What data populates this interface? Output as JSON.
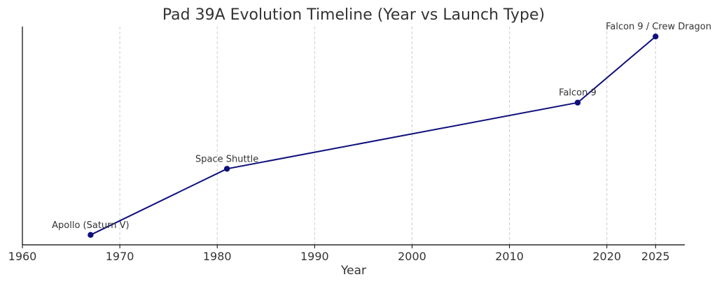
{
  "chart_data": {
    "type": "line",
    "title": "Pad 39A Evolution Timeline (Year vs Launch Type)",
    "xlabel": "Year",
    "ylabel": "",
    "xlim": [
      1960,
      2028
    ],
    "ylim": [
      0.85,
      4.15
    ],
    "x_ticks": [
      1960,
      1970,
      1980,
      1990,
      2000,
      2010,
      2020,
      2025
    ],
    "grid": {
      "x": true,
      "y": false
    },
    "colors": {
      "line": "#0f0f7d",
      "marker": "#0f0f7d",
      "grid": "#cccccc",
      "axis": "#000000",
      "text": "#333333"
    },
    "series": [
      {
        "x": [
          1967,
          1981,
          2017,
          2025
        ],
        "y": [
          1,
          2,
          3,
          4
        ],
        "labels": [
          "Apollo (Saturn V)",
          "Space Shuttle",
          "Falcon 9",
          "Falcon 9 / Crew Dragon"
        ]
      }
    ]
  }
}
